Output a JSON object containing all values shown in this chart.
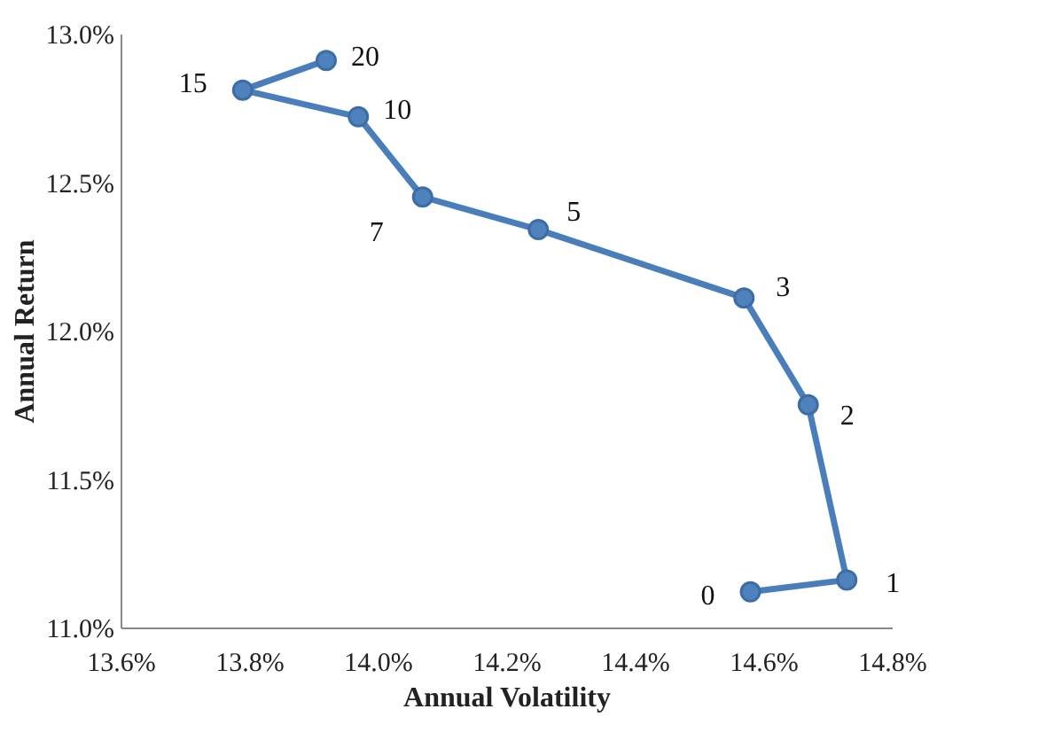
{
  "chart_data": {
    "type": "line",
    "xlabel": "Annual Volatility",
    "ylabel": "Annual Return",
    "x": [
      14.58,
      14.73,
      14.67,
      14.57,
      14.25,
      14.07,
      13.97,
      13.79,
      13.92
    ],
    "series": [
      {
        "color": "#4a7ebb",
        "values": [
          11.12,
          11.16,
          11.75,
          12.11,
          12.34,
          12.45,
          12.72,
          12.81,
          12.91
        ]
      }
    ],
    "marker": "circle",
    "line_style": "solid",
    "grid": false,
    "xlim": [
      13.6,
      14.8
    ],
    "ylim": [
      11.0,
      13.0
    ],
    "xticks": [
      {
        "value": 13.6,
        "label": "13.6%"
      },
      {
        "value": 13.8,
        "label": "13.8%"
      },
      {
        "value": 14.0,
        "label": "14.0%"
      },
      {
        "value": 14.2,
        "label": "14.2%"
      },
      {
        "value": 14.4,
        "label": "14.4%"
      },
      {
        "value": 14.6,
        "label": "14.6%"
      },
      {
        "value": 14.8,
        "label": "14.8%"
      }
    ],
    "yticks": [
      {
        "value": 11.0,
        "label": "11.0%"
      },
      {
        "value": 11.5,
        "label": "11.5%"
      },
      {
        "value": 12.0,
        "label": "12.0%"
      },
      {
        "value": 12.5,
        "label": "12.5%"
      },
      {
        "value": 13.0,
        "label": "13.0%"
      }
    ],
    "annotations": [
      {
        "text": "0",
        "x": 14.58,
        "y": 11.12
      },
      {
        "text": "1",
        "x": 14.73,
        "y": 11.16
      },
      {
        "text": "2",
        "x": 14.67,
        "y": 11.75
      },
      {
        "text": "3",
        "x": 14.57,
        "y": 12.11
      },
      {
        "text": "5",
        "x": 14.25,
        "y": 12.34
      },
      {
        "text": "7",
        "x": 14.07,
        "y": 12.45
      },
      {
        "text": "10",
        "x": 13.97,
        "y": 12.72
      },
      {
        "text": "15",
        "x": 13.79,
        "y": 12.81
      },
      {
        "text": "20",
        "x": 13.92,
        "y": 12.91
      }
    ]
  }
}
